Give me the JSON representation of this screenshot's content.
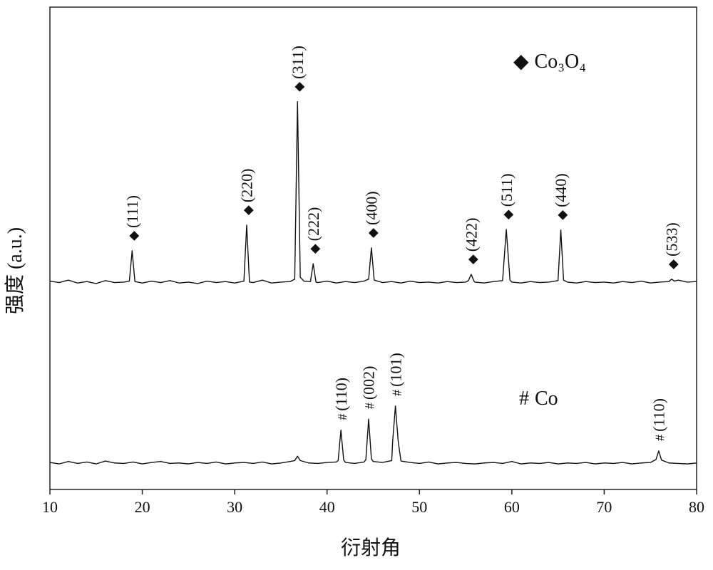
{
  "chart_data": {
    "type": "line",
    "x_label": "衍射角",
    "y_label": "强度 (a.u.)",
    "xlim": [
      10,
      80
    ],
    "xticks": [
      10,
      20,
      30,
      40,
      50,
      60,
      70,
      80
    ],
    "ylim": [
      0,
      100
    ],
    "series": [
      {
        "name": "Co₃O₄",
        "marker": "◆",
        "color": "#111111",
        "x": [
          10,
          11,
          12,
          13,
          14,
          15,
          16,
          17,
          18,
          18.6,
          18.9,
          19.2,
          20,
          21,
          22,
          23,
          24,
          25,
          26,
          27,
          28,
          29,
          30,
          31,
          31.3,
          31.6,
          32,
          33,
          34,
          35,
          36,
          36.5,
          36.8,
          37.1,
          37.5,
          38.2,
          38.5,
          38.8,
          39,
          40,
          41,
          42,
          43,
          44,
          44.5,
          44.8,
          45.1,
          46,
          47,
          48,
          49,
          50,
          51,
          52,
          53,
          54,
          55,
          55.3,
          55.6,
          55.9,
          56,
          57,
          58,
          59,
          59.4,
          59.8,
          60,
          61,
          62,
          63,
          64,
          65,
          65.3,
          65.6,
          66,
          67,
          68,
          69,
          70,
          71,
          72,
          73,
          74,
          75,
          76,
          77,
          77.3,
          77.6,
          78,
          79,
          80
        ],
        "values": [
          43.2,
          42.9,
          43.4,
          42.8,
          43.1,
          42.7,
          43.3,
          42.9,
          43.0,
          43.2,
          49.5,
          43.1,
          42.8,
          43.2,
          42.9,
          43.3,
          42.8,
          43.0,
          42.7,
          43.2,
          42.9,
          43.1,
          42.8,
          43.2,
          54.8,
          43.0,
          42.9,
          43.4,
          42.8,
          43.0,
          43.1,
          43.6,
          80.4,
          44.0,
          43.2,
          43.1,
          46.8,
          43.0,
          42.9,
          43.2,
          42.8,
          43.1,
          42.9,
          43.2,
          43.6,
          50.1,
          43.4,
          42.9,
          43.1,
          42.8,
          43.2,
          42.9,
          43.0,
          42.8,
          43.1,
          42.9,
          43.0,
          43.3,
          44.6,
          43.2,
          43.0,
          42.8,
          43.1,
          43.3,
          53.9,
          43.4,
          43.0,
          42.8,
          43.1,
          42.9,
          43.0,
          43.3,
          53.8,
          43.4,
          43.0,
          42.8,
          43.1,
          42.9,
          43.0,
          42.8,
          43.1,
          42.9,
          43.2,
          42.8,
          43.0,
          43.1,
          43.6,
          43.2,
          43.4,
          43.0,
          43.1
        ],
        "peaks": [
          {
            "x": 18.9,
            "label": "(111)"
          },
          {
            "x": 31.3,
            "label": "(220)"
          },
          {
            "x": 36.8,
            "label": "(311)"
          },
          {
            "x": 38.5,
            "label": "(222)"
          },
          {
            "x": 44.8,
            "label": "(400)"
          },
          {
            "x": 55.6,
            "label": "(422)"
          },
          {
            "x": 59.4,
            "label": "(511)"
          },
          {
            "x": 65.3,
            "label": "(440)"
          },
          {
            "x": 77.3,
            "label": "(533)"
          }
        ]
      },
      {
        "name": "Co",
        "marker": "#",
        "color": "#111111",
        "x": [
          10,
          11,
          12,
          13,
          14,
          15,
          16,
          17,
          18,
          19,
          20,
          21,
          22,
          23,
          24,
          25,
          26,
          27,
          28,
          29,
          30,
          31,
          32,
          33,
          34,
          35,
          36,
          36.5,
          36.8,
          37.1,
          38,
          39,
          40,
          41,
          41.2,
          41.5,
          41.8,
          42,
          43,
          44,
          44.2,
          44.5,
          44.8,
          45,
          46,
          47,
          47.1,
          47.4,
          47.7,
          48,
          49,
          50,
          51,
          52,
          53,
          54,
          55,
          56,
          57,
          58,
          59,
          60,
          61,
          62,
          63,
          64,
          65,
          66,
          67,
          68,
          69,
          70,
          71,
          72,
          73,
          74,
          75,
          75.6,
          75.9,
          76.2,
          77,
          78,
          79,
          80
        ],
        "values": [
          5.6,
          5.3,
          5.8,
          5.4,
          5.7,
          5.3,
          5.9,
          5.5,
          5.4,
          5.7,
          5.3,
          5.6,
          5.8,
          5.4,
          5.5,
          5.3,
          5.6,
          5.4,
          5.7,
          5.3,
          5.5,
          5.6,
          5.4,
          5.7,
          5.3,
          5.5,
          5.8,
          6.0,
          6.9,
          6.0,
          5.5,
          5.4,
          5.6,
          5.7,
          6.0,
          12.3,
          6.1,
          5.6,
          5.4,
          5.7,
          6.2,
          14.6,
          6.3,
          5.8,
          5.6,
          6.0,
          10.0,
          17.3,
          10.0,
          5.9,
          5.6,
          5.4,
          5.7,
          5.3,
          5.5,
          5.6,
          5.4,
          5.3,
          5.5,
          5.6,
          5.4,
          5.8,
          5.3,
          5.5,
          5.4,
          5.6,
          5.3,
          5.5,
          5.4,
          5.6,
          5.3,
          5.5,
          5.4,
          5.6,
          5.3,
          5.5,
          5.6,
          6.2,
          8.0,
          6.1,
          5.5,
          5.4,
          5.3,
          5.5
        ],
        "peaks": [
          {
            "x": 41.5,
            "label": "(110)"
          },
          {
            "x": 44.5,
            "label": "(002)"
          },
          {
            "x": 47.4,
            "label": "(101)"
          },
          {
            "x": 75.9,
            "label": "(110)"
          }
        ]
      }
    ]
  }
}
